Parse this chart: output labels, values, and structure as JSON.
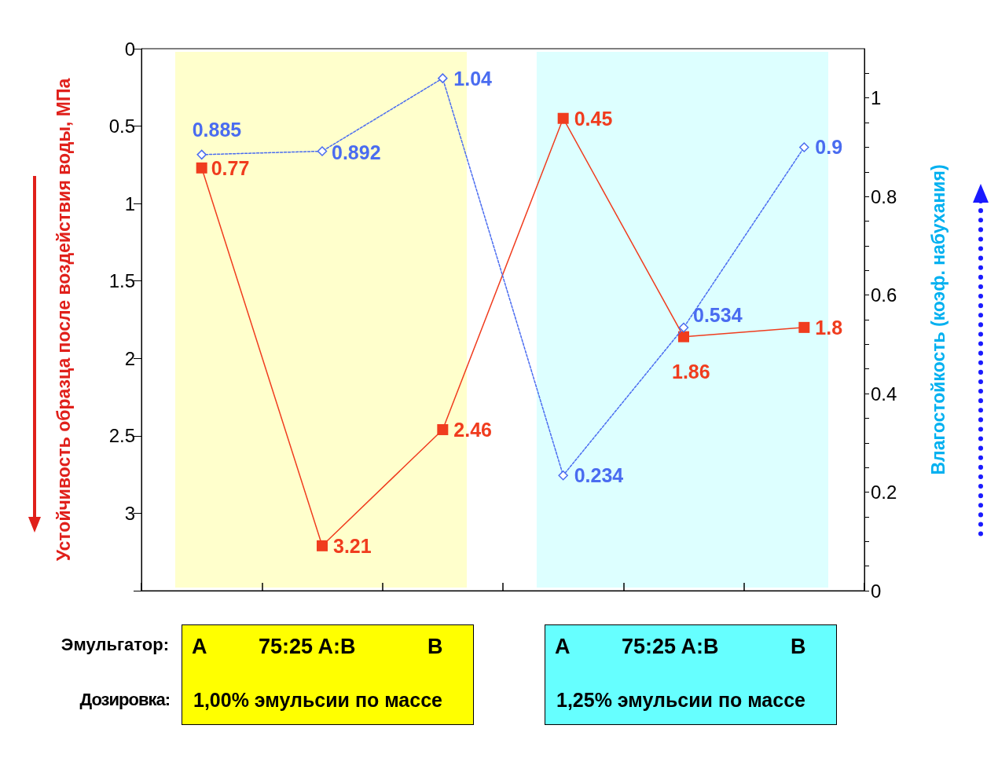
{
  "chart_data": {
    "type": "line",
    "ylabel": "Устойчивость образца после воздействия воды, МПа",
    "y2label": "Влагостойкость (коэф. набухания)",
    "categories": [
      null,
      null,
      null,
      null,
      null,
      null
    ],
    "ylim": [
      3.5,
      0
    ],
    "yticks": [
      0,
      0.5,
      1,
      1.5,
      2,
      2.5,
      3,
      {
        "value": 3.5,
        "label": null
      }
    ],
    "y2lim": [
      0,
      1.1
    ],
    "y2ticks": [
      0,
      {
        "value": 0.05,
        "label": null
      },
      {
        "value": 0.1,
        "label": null
      },
      {
        "value": 0.15,
        "label": null
      },
      0.2,
      {
        "value": 0.25,
        "label": null
      },
      {
        "value": 0.3,
        "label": null
      },
      {
        "value": 0.35,
        "label": null
      },
      0.4,
      {
        "value": 0.45,
        "label": null
      },
      {
        "value": 0.5,
        "label": null
      },
      {
        "value": 0.55,
        "label": null
      },
      0.6,
      {
        "value": 0.65,
        "label": null
      },
      {
        "value": 0.7,
        "label": null
      },
      {
        "value": 0.75,
        "label": null
      },
      0.8,
      {
        "value": 0.85,
        "label": null
      },
      {
        "value": 0.9,
        "label": null
      },
      {
        "value": 0.95,
        "label": null
      },
      1,
      {
        "value": 1.05,
        "label": null
      }
    ],
    "tick_labels": "y",
    "grid": false,
    "data_labels": true,
    "series": [
      {
        "color": "#f03c1e",
        "marker": "square",
        "line_style": "solid",
        "values": [
          0.77,
          3.21,
          2.46,
          0.45,
          1.86,
          1.8
        ]
      },
      {
        "color": "#4a6cf0",
        "marker": "diamond",
        "line_style": "dotted",
        "axis": "y2",
        "values": [
          0.885,
          0.892,
          1.04,
          0.234,
          0.534,
          0.9
        ]
      }
    ],
    "annotations": [
      "Эмульгатор:",
      "Дозировка:",
      "A",
      "75:25 A:B",
      "B",
      "1,00% эмульсии по массе",
      "A",
      "75:25 A:B",
      "B",
      "1,25% эмульсии по массе"
    ]
  }
}
